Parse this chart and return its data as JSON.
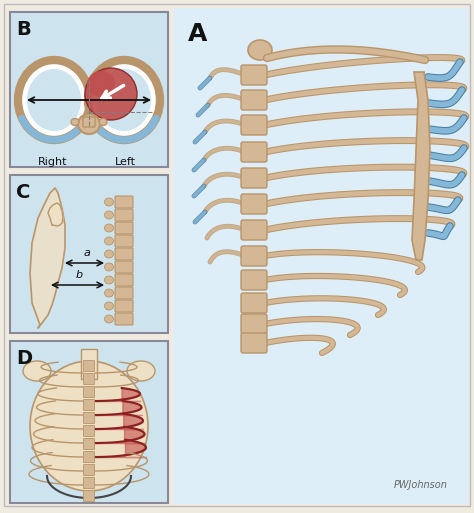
{
  "outer_bg": "#f0ebe0",
  "panel_bg": "#cde4ef",
  "label_fontsize": 13,
  "right_label": "Right",
  "left_label": "Left",
  "a_label": "a",
  "b_label": "b",
  "signature": "PWJohnson",
  "bone_color": "#d4b896",
  "cartilage_color": "#85b8d8",
  "rib_outline": "#b8956a",
  "heart_color": "#c05050",
  "skin_color": "#ede0c4",
  "red_highlight": "#c04545",
  "arrow_color": "#111111",
  "text_color": "#111111",
  "panel_border": "#888899",
  "fig_width": 4.74,
  "fig_height": 5.13,
  "dpi": 100
}
